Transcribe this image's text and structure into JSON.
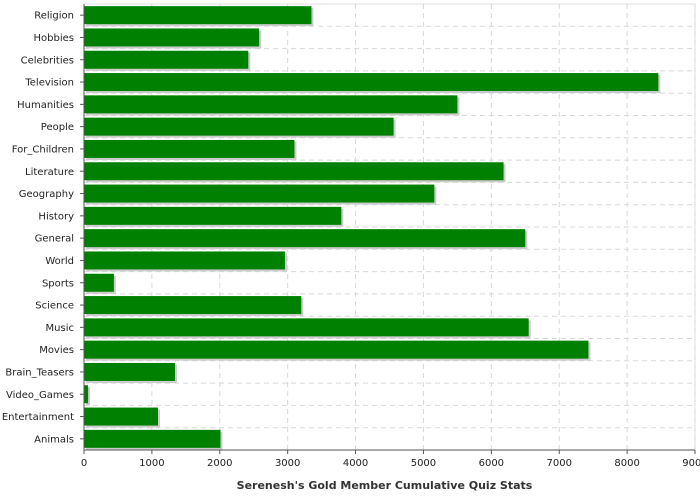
{
  "chart_data": {
    "type": "bar",
    "orientation": "horizontal",
    "categories": [
      "Religion",
      "Hobbies",
      "Celebrities",
      "Television",
      "Humanities",
      "People",
      "For_Children",
      "Literature",
      "Geography",
      "History",
      "General",
      "World",
      "Sports",
      "Science",
      "Music",
      "Movies",
      "Brain_Teasers",
      "Video_Games",
      "Entertainment",
      "Animals"
    ],
    "values": [
      3350,
      2580,
      2420,
      8460,
      5500,
      4560,
      3100,
      6180,
      5160,
      3790,
      6500,
      2960,
      440,
      3200,
      6550,
      7430,
      1340,
      60,
      1090,
      2010
    ],
    "title": "",
    "xlabel": "Serenesh's Gold Member Cumulative Quiz Stats",
    "ylabel": "",
    "xlim": [
      0,
      9000
    ],
    "x_ticks": [
      "0",
      "1000",
      "2000",
      "3000",
      "4000",
      "5000",
      "6000",
      "7000",
      "8000",
      "9000"
    ],
    "grid": true,
    "legend": "none",
    "bar_color": "#008000",
    "bar_shadow_color": "#cccccc",
    "grid_color": "#d8d8d8"
  }
}
